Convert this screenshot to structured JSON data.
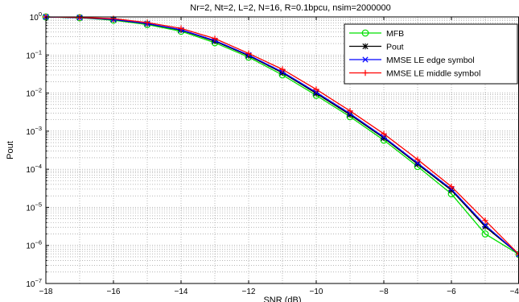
{
  "chart_data": {
    "type": "line",
    "title": "Nr=2, Nt=2, L=2, N=16, R=0.1bpcu, nsim=2000000",
    "xlabel": "SNR (dB)",
    "ylabel": "Pout",
    "xlim": [
      -18,
      -4
    ],
    "ylim": [
      1e-07,
      1
    ],
    "yscale": "log",
    "grid": true,
    "legend_position": "top-right",
    "x_ticks": [
      -18,
      -16,
      -14,
      -12,
      -10,
      -8,
      -6,
      -4
    ],
    "x_tick_labels": [
      "−18",
      "−16",
      "−14",
      "−12",
      "−10",
      "−8",
      "−6",
      "−4"
    ],
    "y_tick_exponents": [
      0,
      -1,
      -2,
      -3,
      -4,
      -5,
      -6,
      -7
    ],
    "y_tick_base": "10",
    "series": [
      {
        "name": "MFB",
        "color": "#00e000",
        "marker": "circle",
        "x": [
          -18,
          -17,
          -16,
          -15,
          -14,
          -13,
          -12,
          -11,
          -10,
          -9,
          -8,
          -7,
          -6,
          -5,
          -4
        ],
        "y": [
          1.0,
          0.95,
          0.82,
          0.63,
          0.42,
          0.21,
          0.088,
          0.03,
          0.0087,
          0.0024,
          0.00058,
          0.000118,
          2.25e-05,
          2e-06,
          5.8e-07
        ]
      },
      {
        "name": "Pout",
        "color": "#000000",
        "marker": "star",
        "x": [
          -18,
          -17,
          -16,
          -15,
          -14,
          -13,
          -12,
          -11,
          -10,
          -9,
          -8,
          -7,
          -6,
          -5,
          -4
        ],
        "y": [
          1.0,
          0.96,
          0.85,
          0.66,
          0.45,
          0.23,
          0.096,
          0.034,
          0.0098,
          0.0027,
          0.00066,
          0.000136,
          2.8e-05,
          3.1e-06,
          5.8e-07
        ]
      },
      {
        "name": "MMSE LE edge symbol",
        "color": "#0000ff",
        "marker": "x",
        "x": [
          -18,
          -17,
          -16,
          -15,
          -14,
          -13,
          -12,
          -11,
          -10,
          -9,
          -8,
          -7,
          -6,
          -5,
          -4
        ],
        "y": [
          1.0,
          0.96,
          0.86,
          0.67,
          0.46,
          0.24,
          0.1,
          0.036,
          0.0105,
          0.0029,
          0.0007,
          0.000145,
          3e-05,
          3.4e-06,
          5.8e-07
        ]
      },
      {
        "name": "MMSE LE middle symbol",
        "color": "#ff0000",
        "marker": "plus",
        "x": [
          -18,
          -17,
          -16,
          -15,
          -14,
          -13,
          -12,
          -11,
          -10,
          -9,
          -8,
          -7,
          -6,
          -5,
          -4
        ],
        "y": [
          1.0,
          0.97,
          0.9,
          0.71,
          0.5,
          0.27,
          0.11,
          0.042,
          0.0125,
          0.0034,
          0.00085,
          0.00018,
          3.5e-05,
          4.5e-06,
          5.8e-07
        ]
      }
    ]
  }
}
